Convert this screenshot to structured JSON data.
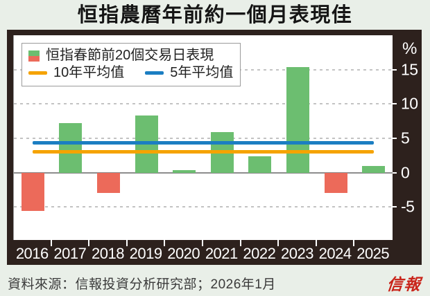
{
  "title": "恒指農曆年前約一個月表現佳",
  "source": "資料來源：信報投資分析研究部；2026年1月",
  "logo": "信報",
  "chart_data": {
    "type": "bar",
    "categories": [
      "2016",
      "2017",
      "2018",
      "2019",
      "2020",
      "2021",
      "2022",
      "2023",
      "2024",
      "2025"
    ],
    "series": [
      {
        "name": "恒指春節前20個交易日表現",
        "values": [
          -5.6,
          7.2,
          -3.0,
          8.3,
          0.4,
          5.9,
          2.4,
          15.4,
          -3.0,
          1.0
        ]
      }
    ],
    "avg_lines": [
      {
        "name": "10年平均值",
        "value": 3.0,
        "color": "#f5a302"
      },
      {
        "name": "5年平均值",
        "value": 4.3,
        "color": "#1b7ec2"
      }
    ],
    "unit_label": "%",
    "y_ticks": [
      15,
      10,
      5,
      0,
      -5
    ],
    "ylim": [
      -9.8,
      20
    ],
    "bar_positive_color": "#6cbe70",
    "bar_negative_color": "#ec6a5a",
    "grid": true,
    "legend_position": "top-left",
    "xlabel": "",
    "ylabel": "%"
  }
}
